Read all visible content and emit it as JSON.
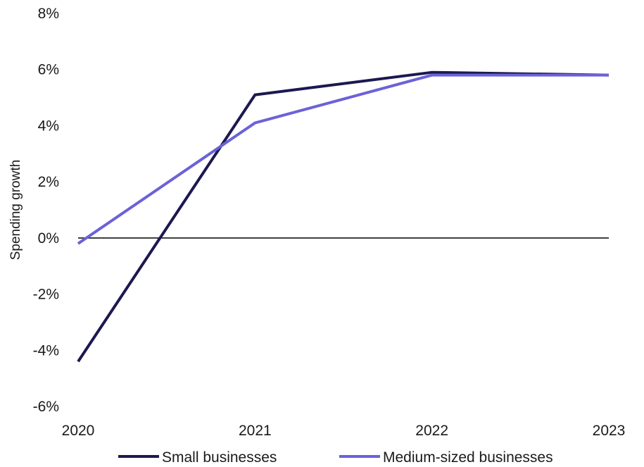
{
  "chart_data": {
    "type": "line",
    "title": "",
    "xlabel": "",
    "ylabel": "Spending growth",
    "x": [
      "2020",
      "2021",
      "2022",
      "2023"
    ],
    "y_ticks": [
      "8%",
      "6%",
      "4%",
      "2%",
      "0%",
      "-2%",
      "-4%",
      "-6%"
    ],
    "y_tick_values": [
      8,
      6,
      4,
      2,
      0,
      -2,
      -4,
      -6
    ],
    "ylim": [
      -6,
      8
    ],
    "unit": "%",
    "grid": false,
    "zero_line": true,
    "legend_position": "bottom",
    "series": [
      {
        "name": "Small businesses",
        "values": [
          -4.4,
          5.1,
          5.9,
          5.8
        ],
        "color": "#1c1850"
      },
      {
        "name": "Medium-sized businesses",
        "values": [
          -0.2,
          4.1,
          5.8,
          5.8
        ],
        "color": "#6b62d8"
      }
    ]
  }
}
